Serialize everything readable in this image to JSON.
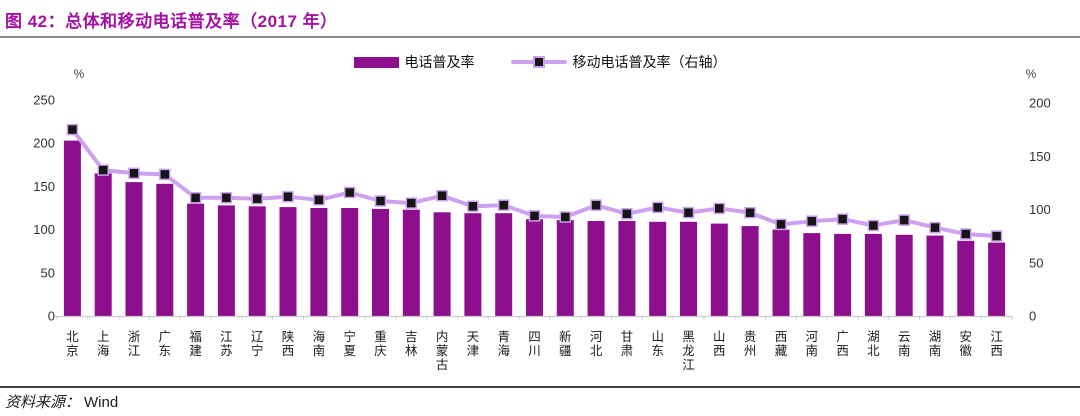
{
  "header": {
    "title": "图 42：总体和移动电话普及率（2017 年）"
  },
  "footer": {
    "source_label": "资料来源：",
    "source_value": "Wind"
  },
  "colors": {
    "title": "#A412A4",
    "bar": "#8E0F8E",
    "line": "#CDA0F0",
    "marker": "#161616",
    "axis_text": "#333333",
    "axis_line": "#C9C9C9",
    "divider_top": "#8A8A8A",
    "divider_bottom": "#3E3E3E"
  },
  "chart_data": {
    "type": "bar",
    "title": "图 42：总体和移动电话普及率（2017 年）",
    "categories": [
      "北京",
      "上海",
      "浙江",
      "广东",
      "福建",
      "江苏",
      "辽宁",
      "陕西",
      "海南",
      "宁夏",
      "重庆",
      "吉林",
      "内蒙古",
      "天津",
      "青海",
      "四川",
      "新疆",
      "河北",
      "甘肃",
      "山东",
      "黑龙江",
      "山西",
      "贵州",
      "西藏",
      "河南",
      "广西",
      "湖北",
      "云南",
      "湖南",
      "安徽",
      "江西"
    ],
    "series": [
      {
        "name": "电话普及率",
        "type": "bar",
        "axis": "left",
        "values": [
          203,
          165,
          155,
          153,
          130,
          128,
          127,
          126,
          125,
          125,
          124,
          123,
          120,
          119,
          119,
          112,
          111,
          110,
          110,
          109,
          109,
          107,
          104,
          100,
          96,
          95,
          95,
          94,
          93,
          87,
          85
        ]
      },
      {
        "name": "移动电话普及率（右轴）",
        "type": "line",
        "axis": "right",
        "values": [
          175,
          137,
          134,
          133,
          111,
          111,
          110,
          112,
          109,
          116,
          108,
          106,
          113,
          103,
          104,
          94,
          93,
          104,
          96,
          102,
          97,
          101,
          97,
          86,
          89,
          91,
          85,
          90,
          83,
          77,
          75
        ]
      }
    ],
    "left_axis": {
      "unit": "%",
      "min": 0,
      "max": 250,
      "ticks": [
        0,
        50,
        100,
        150,
        200,
        250
      ]
    },
    "right_axis": {
      "unit": "%",
      "min": 0,
      "max": 200,
      "ticks": [
        0,
        50,
        100,
        150,
        200
      ]
    },
    "legend_position": "top-center",
    "grid": false
  }
}
